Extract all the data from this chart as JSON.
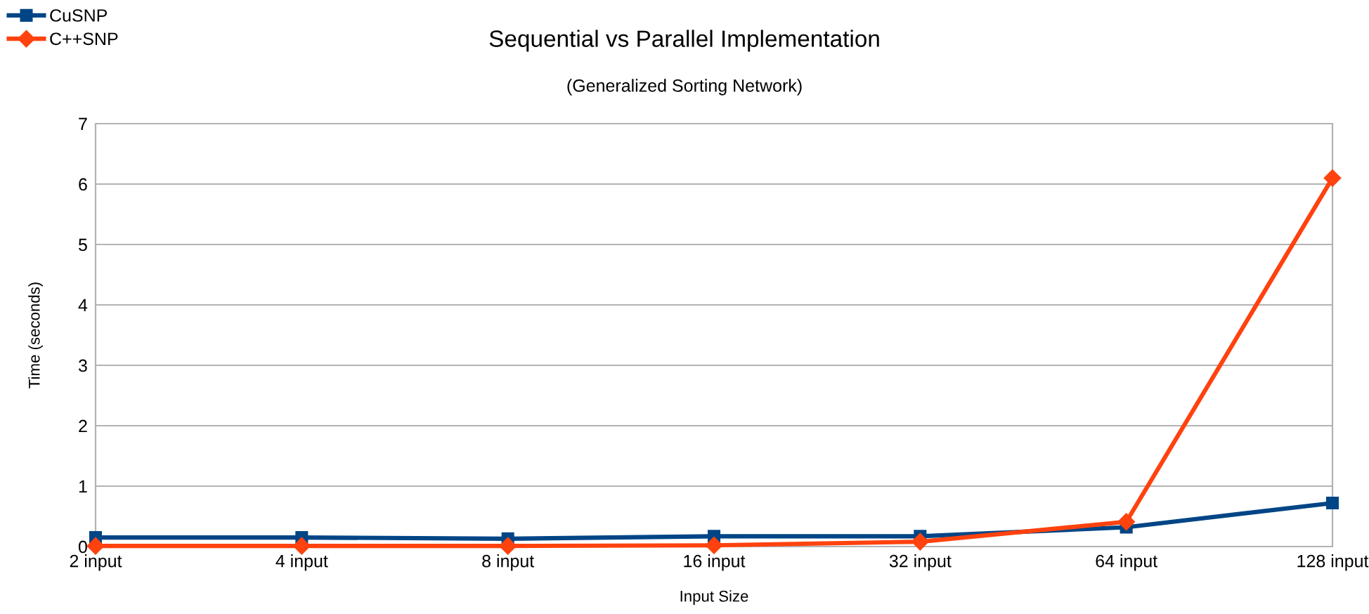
{
  "chart_data": {
    "type": "line",
    "title": "Sequential vs Parallel Implementation",
    "subtitle": "(Generalized Sorting Network)",
    "xlabel": "Input Size",
    "ylabel": "Time (seconds)",
    "categories": [
      "2 input",
      "4 input",
      "8 input",
      "16 input",
      "32 input",
      "64 input",
      "128 input"
    ],
    "series": [
      {
        "name": "CuSNP",
        "color": "#004586",
        "marker": "square",
        "values": [
          0.15,
          0.15,
          0.13,
          0.17,
          0.17,
          0.32,
          0.72
        ]
      },
      {
        "name": "C++SNP",
        "color": "#ff420e",
        "marker": "diamond",
        "values": [
          0.01,
          0.01,
          0.01,
          0.02,
          0.08,
          0.41,
          6.1
        ]
      }
    ],
    "ylim": [
      0,
      7
    ],
    "yticks": [
      0,
      1,
      2,
      3,
      4,
      5,
      6,
      7
    ],
    "grid": "y",
    "legend": "top left",
    "line_style": "solid"
  }
}
